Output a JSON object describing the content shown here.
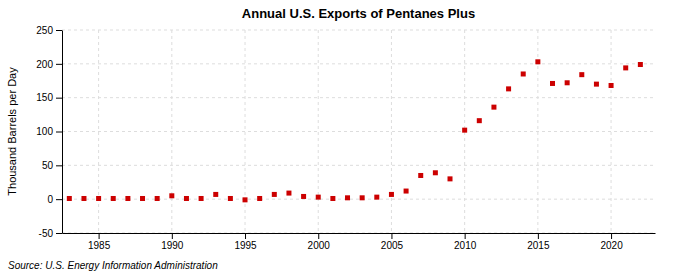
{
  "chart_data": {
    "type": "scatter",
    "title": "Annual U.S. Exports of Pentanes Plus",
    "ylabel": "Thousand Barrels per Day",
    "source": "Source: U.S. Energy Information Administration",
    "color": "#cc0000",
    "marker": "square",
    "grid": true,
    "xlim": [
      1982.5,
      2023
    ],
    "ylim": [
      -50,
      250
    ],
    "xticks": [
      1985,
      1990,
      1995,
      2000,
      2005,
      2010,
      2015,
      2020
    ],
    "yticks": [
      -50,
      0,
      50,
      100,
      150,
      200,
      250
    ],
    "x": [
      1983,
      1984,
      1985,
      1986,
      1987,
      1988,
      1989,
      1990,
      1991,
      1992,
      1993,
      1994,
      1995,
      1996,
      1997,
      1998,
      1999,
      2000,
      2001,
      2002,
      2003,
      2004,
      2005,
      2006,
      2007,
      2008,
      2009,
      2010,
      2011,
      2012,
      2013,
      2014,
      2015,
      2016,
      2017,
      2018,
      2019,
      2020,
      2021,
      2022
    ],
    "values": [
      1,
      1,
      1,
      1,
      1,
      1,
      1,
      5,
      1,
      1,
      7,
      1,
      -1,
      1,
      7,
      9,
      4,
      3,
      1,
      2,
      2,
      3,
      7,
      12,
      35,
      39,
      30,
      102,
      116,
      136,
      163,
      185,
      203,
      171,
      172,
      184,
      170,
      168,
      194,
      199
    ]
  }
}
